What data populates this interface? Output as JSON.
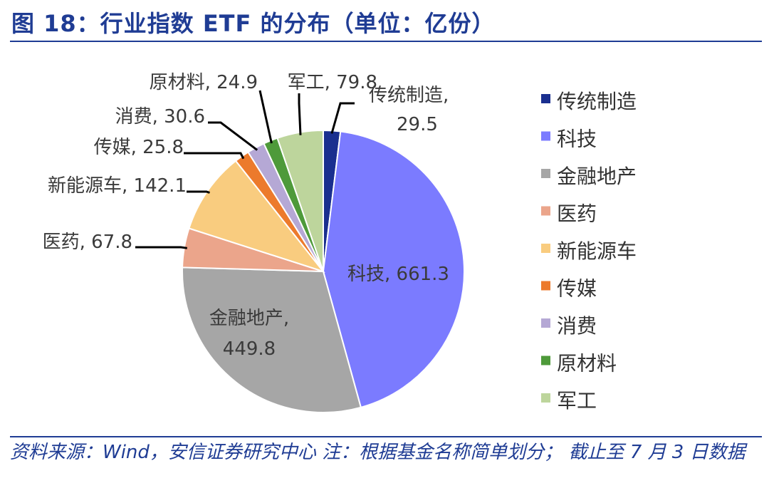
{
  "header": {
    "title": "图 18：行业指数 ETF 的分布（单位：亿份）"
  },
  "footer": {
    "source": "资料来源：Wind，安信证券研究中心    注：根据基金名称简单划分；  截止至 7 月 3 日数据"
  },
  "chart_data": {
    "type": "pie",
    "unit": "亿份",
    "slices": [
      {
        "name": "传统制造",
        "value": 29.5,
        "color": "#1a2f8f",
        "label": [
          "传统制造,",
          "29.5"
        ]
      },
      {
        "name": "科技",
        "value": 661.3,
        "color": "#7b7bff",
        "label": [
          "科技, 661.3"
        ]
      },
      {
        "name": "金融地产",
        "value": 449.8,
        "color": "#a6a6a6",
        "label": [
          "金融地产,",
          "449.8"
        ]
      },
      {
        "name": "医药",
        "value": 67.8,
        "color": "#eba58b",
        "label": [
          "医药, 67.8"
        ]
      },
      {
        "name": "新能源车",
        "value": 142.1,
        "color": "#f9cc7f",
        "label": [
          "新能源车, 142.1"
        ]
      },
      {
        "name": "传媒",
        "value": 25.8,
        "color": "#ec7a2c",
        "label": [
          "传媒, 25.8"
        ]
      },
      {
        "name": "消费",
        "value": 30.6,
        "color": "#b5a8d5",
        "label": [
          "消费, 30.6"
        ]
      },
      {
        "name": "原材料",
        "value": 24.9,
        "color": "#4e9a3a",
        "label": [
          "原材料, 24.9"
        ]
      },
      {
        "name": "军工",
        "value": 79.8,
        "color": "#bdd59c",
        "label": [
          "军工, 79.8"
        ]
      }
    ],
    "legend": {
      "position": "right",
      "items": [
        "传统制造",
        "科技",
        "金融地产",
        "医药",
        "新能源车",
        "传媒",
        "消费",
        "原材料",
        "军工"
      ]
    }
  }
}
